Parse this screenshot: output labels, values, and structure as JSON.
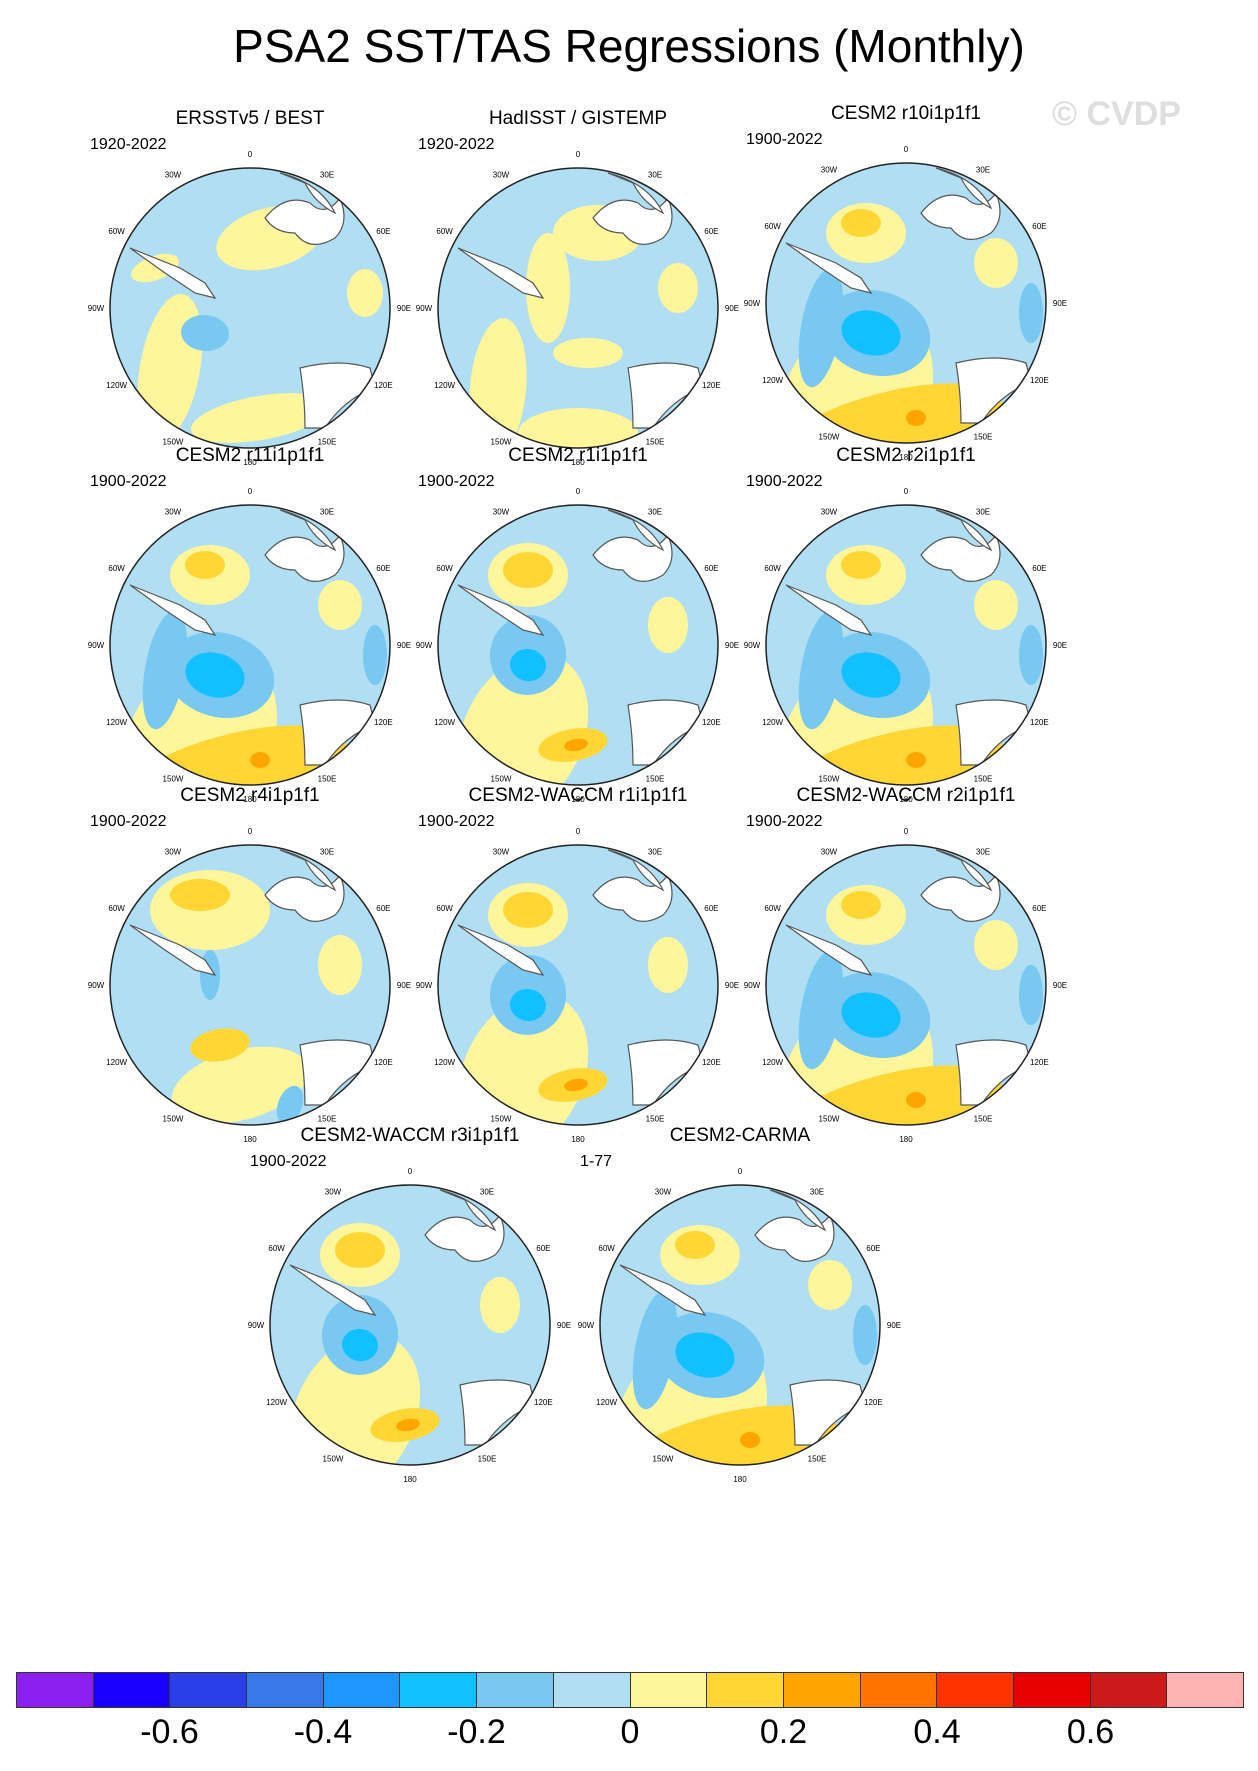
{
  "title": "PSA2 SST/TAS Regressions (Monthly)",
  "watermark": "© CVDP",
  "lon_labels": [
    "0",
    "30E",
    "60E",
    "90E",
    "120E",
    "150E",
    "180",
    "150W",
    "120W",
    "90W",
    "60W",
    "30W"
  ],
  "panels": [
    {
      "title": "ERSSTv5 / BEST",
      "period": "1920-2022",
      "pattern": "obs1"
    },
    {
      "title": "HadISST / GISTEMP",
      "period": "1920-2022",
      "pattern": "obs2"
    },
    {
      "title": "CESM2 r10i1p1f1",
      "period": "1900-2022",
      "pattern": "model-strong"
    },
    {
      "title": "CESM2 r11i1p1f1",
      "period": "1900-2022",
      "pattern": "model-strong"
    },
    {
      "title": "CESM2 r1i1p1f1",
      "period": "1900-2022",
      "pattern": "model-medium"
    },
    {
      "title": "CESM2 r2i1p1f1",
      "period": "1900-2022",
      "pattern": "model-strong"
    },
    {
      "title": "CESM2 r4i1p1f1",
      "period": "1900-2022",
      "pattern": "model-weak"
    },
    {
      "title": "CESM2-WACCM r1i1p1f1",
      "period": "1900-2022",
      "pattern": "model-medium"
    },
    {
      "title": "CESM2-WACCM r2i1p1f1",
      "period": "1900-2022",
      "pattern": "model-strong"
    },
    {
      "title": "CESM2-WACCM r3i1p1f1",
      "period": "1900-2022",
      "pattern": "model-medium"
    },
    {
      "title": "CESM2-CARMA",
      "period": "1-77",
      "pattern": "model-strong"
    }
  ],
  "colorbar": {
    "colors": [
      "#8a1ff0",
      "#1a00ff",
      "#2a3fe8",
      "#3a78ea",
      "#1f96ff",
      "#12bfff",
      "#78c8f2",
      "#b0dff3",
      "#fff59a",
      "#ffd633",
      "#ffa500",
      "#ff7300",
      "#ff3300",
      "#e80000",
      "#cc1a1a",
      "#ffb3b3"
    ],
    "tick_labels": [
      "-0.6",
      "-0.4",
      "-0.2",
      "0",
      "0.2",
      "0.4",
      "0.6"
    ],
    "tick_values": [
      -0.6,
      -0.4,
      -0.2,
      0,
      0.2,
      0.4,
      0.6
    ]
  }
}
